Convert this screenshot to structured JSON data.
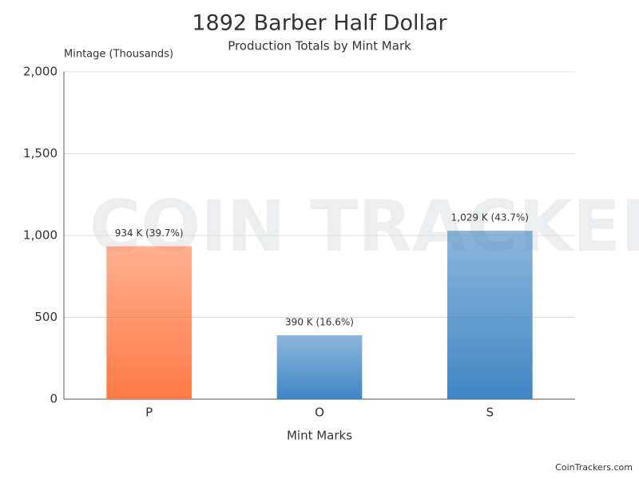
{
  "chart_data": {
    "type": "bar",
    "title": "1892 Barber Half Dollar",
    "subtitle": "Production Totals by Mint Mark",
    "y_label": "Mintage (Thousands)",
    "x_label": "Mint Marks",
    "categories": [
      "P",
      "O",
      "S"
    ],
    "values": [
      934,
      390,
      1029
    ],
    "value_labels": [
      "934 K (39.7%)",
      "390 K (16.6%)",
      "1,029 K (43.7%)"
    ],
    "colors": [
      "#ff7a45",
      "#3f86c4",
      "#3f86c4"
    ],
    "ylim": [
      0,
      2000
    ],
    "yticks": [
      0,
      500,
      {
        "value": 1000,
        "label": "1,000"
      },
      {
        "value": 1500,
        "label": "1,500"
      },
      {
        "value": 2000,
        "label": "2,000"
      }
    ],
    "grid": true,
    "watermark": "COIN TRACKERS",
    "source": "CoinTrackers.com"
  }
}
